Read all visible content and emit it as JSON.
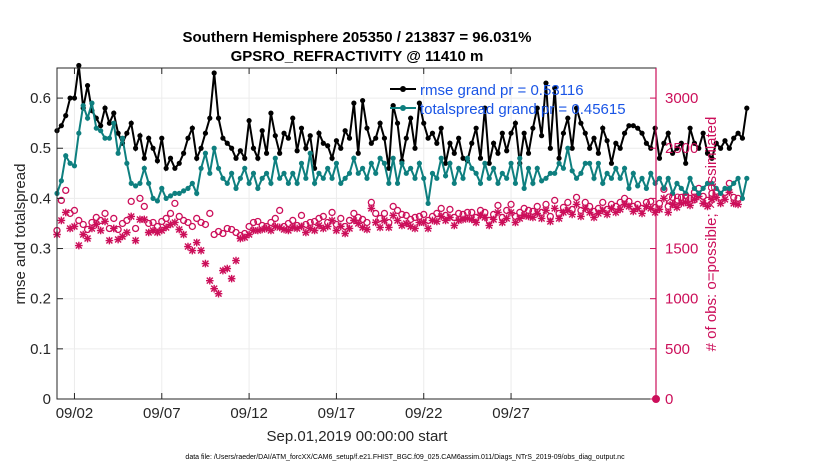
{
  "chart_data": {
    "type": "line",
    "title": "Southern Hemisphere 205350 / 213837 = 96.031%",
    "subtitle": "GPSRO_REFRACTIVITY @ 11410 m",
    "xlabel": "Sep.01,2019 00:00:00 start",
    "ylabel": "rmse and totalspread",
    "ylabel_right": "# of obs: o=possible; ×=assimilated",
    "xlim": [
      0,
      34.3
    ],
    "ylim": [
      0,
      0.66
    ],
    "ylim_right": [
      0,
      3300
    ],
    "x_ticks": [
      {
        "value": 1,
        "label": "09/02"
      },
      {
        "value": 6,
        "label": "09/07"
      },
      {
        "value": 11,
        "label": "09/12"
      },
      {
        "value": 16,
        "label": "09/17"
      },
      {
        "value": 21,
        "label": "09/22"
      },
      {
        "value": 26,
        "label": "09/27"
      }
    ],
    "y_ticks": [
      {
        "value": 0,
        "label": "0"
      },
      {
        "value": 0.1,
        "label": "0.1"
      },
      {
        "value": 0.2,
        "label": "0.2"
      },
      {
        "value": 0.3,
        "label": "0.3"
      },
      {
        "value": 0.4,
        "label": "0.4"
      },
      {
        "value": 0.5,
        "label": "0.5"
      },
      {
        "value": 0.6,
        "label": "0.6"
      }
    ],
    "y_ticks_right": [
      {
        "value": 0,
        "label": "0"
      },
      {
        "value": 500,
        "label": "500"
      },
      {
        "value": 1000,
        "label": "1000"
      },
      {
        "value": 1500,
        "label": "1500"
      },
      {
        "value": 2000,
        "label": "2000"
      },
      {
        "value": 2500,
        "label": "2500"
      },
      {
        "value": 3000,
        "label": "3000"
      }
    ],
    "x_step": 0.25,
    "x_start": 0,
    "series": [
      {
        "name": "rmse",
        "legend": "rmse grand pr = 0.53116",
        "color": "#000000",
        "axis": "left",
        "marker": "circle",
        "values": [
          0.535,
          0.545,
          0.565,
          0.6,
          0.6,
          0.665,
          0.58,
          0.625,
          0.575,
          0.56,
          0.545,
          0.58,
          0.55,
          0.57,
          0.53,
          0.51,
          0.53,
          0.55,
          0.5,
          0.525,
          0.48,
          0.52,
          0.5,
          0.475,
          0.52,
          0.46,
          0.48,
          0.46,
          0.47,
          0.49,
          0.52,
          0.54,
          0.48,
          0.5,
          0.53,
          0.56,
          0.65,
          0.56,
          0.52,
          0.51,
          0.5,
          0.48,
          0.495,
          0.48,
          0.555,
          0.5,
          0.48,
          0.535,
          0.49,
          0.57,
          0.525,
          0.49,
          0.53,
          0.52,
          0.56,
          0.495,
          0.54,
          0.5,
          0.525,
          0.46,
          0.53,
          0.51,
          0.505,
          0.48,
          0.515,
          0.5,
          0.535,
          0.52,
          0.59,
          0.49,
          0.595,
          0.54,
          0.51,
          0.52,
          0.55,
          0.52,
          0.46,
          0.585,
          0.55,
          0.475,
          0.52,
          0.56,
          0.5,
          0.59,
          0.55,
          0.52,
          0.53,
          0.51,
          0.54,
          0.47,
          0.51,
          0.49,
          0.52,
          0.48,
          0.475,
          0.51,
          0.54,
          0.48,
          0.58,
          0.47,
          0.51,
          0.49,
          0.53,
          0.495,
          0.53,
          0.55,
          0.47,
          0.53,
          0.49,
          0.54,
          0.58,
          0.525,
          0.63,
          0.5,
          0.62,
          0.48,
          0.53,
          0.56,
          0.5,
          0.58,
          0.55,
          0.53,
          0.5,
          0.52,
          0.49,
          0.54,
          0.515,
          0.47,
          0.51,
          0.5,
          0.53,
          0.545,
          0.545,
          0.54,
          0.53,
          0.51,
          0.5,
          0.54,
          0.48,
          0.51,
          0.53,
          0.49,
          0.5,
          0.51,
          0.47,
          0.54,
          0.51,
          0.5,
          0.53,
          0.49,
          0.48,
          0.51,
          0.5,
          0.515,
          0.5,
          0.52,
          0.53,
          0.52,
          0.58
        ]
      },
      {
        "name": "totalspread",
        "legend": "totalspread grand pr = 0.45615",
        "color": "#0e7f7f",
        "axis": "left",
        "marker": "circle",
        "values": [
          0.41,
          0.435,
          0.485,
          0.47,
          0.465,
          0.53,
          0.585,
          0.56,
          0.59,
          0.54,
          0.535,
          0.52,
          0.52,
          0.55,
          0.49,
          0.52,
          0.47,
          0.43,
          0.425,
          0.43,
          0.46,
          0.43,
          0.4,
          0.395,
          0.42,
          0.4,
          0.405,
          0.41,
          0.41,
          0.415,
          0.42,
          0.43,
          0.41,
          0.46,
          0.49,
          0.45,
          0.5,
          0.46,
          0.44,
          0.43,
          0.45,
          0.42,
          0.44,
          0.46,
          0.43,
          0.45,
          0.42,
          0.44,
          0.45,
          0.43,
          0.48,
          0.44,
          0.45,
          0.43,
          0.45,
          0.43,
          0.47,
          0.44,
          0.49,
          0.43,
          0.45,
          0.44,
          0.46,
          0.44,
          0.47,
          0.43,
          0.44,
          0.45,
          0.48,
          0.45,
          0.46,
          0.44,
          0.47,
          0.45,
          0.48,
          0.47,
          0.43,
          0.48,
          0.43,
          0.47,
          0.45,
          0.46,
          0.44,
          0.47,
          0.44,
          0.39,
          0.45,
          0.44,
          0.48,
          0.445,
          0.47,
          0.43,
          0.46,
          0.44,
          0.48,
          0.46,
          0.45,
          0.43,
          0.47,
          0.44,
          0.46,
          0.43,
          0.45,
          0.44,
          0.47,
          0.43,
          0.48,
          0.42,
          0.46,
          0.43,
          0.46,
          0.435,
          0.44,
          0.45,
          0.45,
          0.47,
          0.46,
          0.5,
          0.455,
          0.44,
          0.45,
          0.47,
          0.47,
          0.44,
          0.47,
          0.43,
          0.45,
          0.44,
          0.46,
          0.44,
          0.46,
          0.42,
          0.45,
          0.425,
          0.44,
          0.42,
          0.45,
          0.43,
          0.44,
          0.42,
          0.44,
          0.41,
          0.43,
          0.42,
          0.41,
          0.44,
          0.42,
          0.41,
          0.42,
          0.43,
          0.43,
          0.42,
          0.41,
          0.42,
          0.42,
          0.43,
          0.44,
          0.4,
          0.44
        ]
      },
      {
        "name": "possible",
        "color": "#cc0f5a",
        "axis": "right",
        "marker": "o",
        "values": [
          1680,
          1980,
          2080,
          1850,
          1880,
          1780,
          1740,
          1690,
          1760,
          1810,
          1780,
          1850,
          1700,
          1800,
          1690,
          1750,
          1780,
          1970,
          1700,
          2000,
          1920,
          1750,
          1760,
          1720,
          1770,
          1800,
          1850,
          1950,
          1820,
          1780,
          1760,
          1720,
          1800,
          1760,
          1740,
          1850,
          1640,
          1670,
          1650,
          1700,
          1690,
          1660,
          1630,
          1650,
          1720,
          1760,
          1770,
          1730,
          1720,
          1760,
          1800,
          1880,
          1720,
          1750,
          1780,
          1730,
          1830,
          1740,
          1760,
          1770,
          1800,
          1820,
          1760,
          1860,
          1740,
          1800,
          1720,
          1780,
          1850,
          1810,
          1790,
          1760,
          1960,
          1850,
          1800,
          1850,
          1760,
          1920,
          1880,
          1840,
          1830,
          1790,
          1810,
          1820,
          1840,
          1780,
          1820,
          1850,
          1900,
          1830,
          1890,
          1810,
          1850,
          1840,
          1860,
          1860,
          1810,
          1880,
          1860,
          1780,
          1840,
          1930,
          1810,
          1880,
          1940,
          1820,
          1860,
          1900,
          1880,
          1870,
          1920,
          1860,
          1940,
          1820,
          1980,
          1850,
          1910,
          1960,
          1890,
          2010,
          1880,
          1960,
          1920,
          1870,
          1900,
          1960,
          1890,
          1940,
          1920,
          1960,
          2000,
          1970,
          1920,
          1940,
          1900,
          1960,
          1970,
          1910,
          1950,
          2090,
          1920,
          2010,
          1970,
          2010,
          2030,
          2000,
          2060,
          2100,
          2020,
          1980,
          2050,
          2070,
          2010,
          2060,
          2150,
          2010,
          2000
        ]
      },
      {
        "name": "assimilated",
        "color": "#cc0f5a",
        "axis": "right",
        "marker": "x",
        "values": [
          1640,
          1780,
          1860,
          1700,
          1720,
          1530,
          1640,
          1600,
          1700,
          1740,
          1680,
          1770,
          1580,
          1700,
          1590,
          1620,
          1660,
          1820,
          1580,
          1790,
          1790,
          1660,
          1680,
          1660,
          1680,
          1710,
          1740,
          1760,
          1690,
          1640,
          1520,
          1480,
          1560,
          1480,
          1350,
          1180,
          1100,
          1050,
          1280,
          1300,
          1200,
          1380,
          1600,
          1610,
          1640,
          1680,
          1680,
          1690,
          1700,
          1680,
          1720,
          1710,
          1690,
          1680,
          1710,
          1700,
          1720,
          1660,
          1700,
          1680,
          1730,
          1700,
          1720,
          1780,
          1680,
          1720,
          1650,
          1700,
          1780,
          1750,
          1710,
          1690,
          1900,
          1760,
          1710,
          1780,
          1710,
          1830,
          1780,
          1730,
          1750,
          1720,
          1700,
          1760,
          1760,
          1700,
          1780,
          1770,
          1820,
          1780,
          1810,
          1730,
          1780,
          1790,
          1800,
          1790,
          1760,
          1830,
          1810,
          1730,
          1790,
          1860,
          1760,
          1800,
          1860,
          1760,
          1800,
          1830,
          1820,
          1810,
          1850,
          1800,
          1880,
          1770,
          1900,
          1800,
          1860,
          1880,
          1840,
          1940,
          1820,
          1900,
          1860,
          1810,
          1850,
          1880,
          1840,
          1900,
          1860,
          1890,
          1940,
          1920,
          1870,
          1900,
          1850,
          1920,
          1900,
          1860,
          1890,
          2000,
          1860,
          1940,
          1910,
          1950,
          1960,
          1930,
          1990,
          2020,
          1950,
          1920,
          1990,
          2010,
          1950,
          1990,
          2060,
          1950,
          1940
        ]
      }
    ]
  },
  "footnote": "data file: /Users/raeder/DAI/ATM_forcXX/CAM6_setup/f.e21.FHIST_BGC.f09_025.CAM6assim.011/Diags_NTrS_2019-09/obs_diag_output.nc"
}
